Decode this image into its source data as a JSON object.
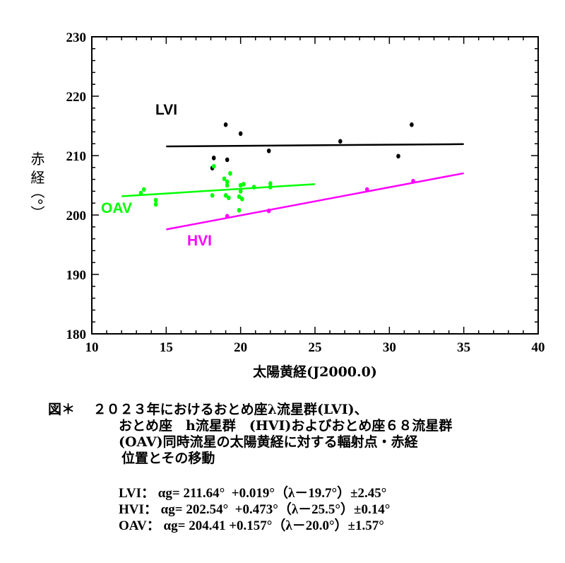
{
  "chart_data": {
    "type": "scatter",
    "xlabel": "太陽黄経(J2000.0)",
    "ylabel": "赤 経（°）",
    "xlim": [
      10,
      40
    ],
    "ylim": [
      180,
      230
    ],
    "xticks": [
      10,
      15,
      20,
      25,
      30,
      35,
      40
    ],
    "yticks": [
      180,
      190,
      200,
      210,
      220,
      230
    ],
    "grid": false,
    "series": [
      {
        "name": "LVI",
        "color": "#000000",
        "points": [
          [
            19.0,
            215.2
          ],
          [
            20.0,
            213.7
          ],
          [
            18.2,
            209.6
          ],
          [
            19.1,
            209.3
          ],
          [
            18.1,
            207.9
          ],
          [
            21.9,
            210.8
          ],
          [
            26.7,
            212.4
          ],
          [
            30.6,
            209.9
          ],
          [
            31.5,
            215.2
          ]
        ],
        "fit": {
          "intercept": 211.64,
          "slope": 0.019,
          "lambda0": 19.7,
          "range": [
            15,
            35
          ]
        }
      },
      {
        "name": "HVI",
        "color": "#ff00ff",
        "points": [
          [
            19.1,
            199.8
          ],
          [
            21.9,
            200.7
          ],
          [
            28.5,
            204.3
          ],
          [
            31.6,
            205.7
          ]
        ],
        "fit": {
          "intercept": 202.54,
          "slope": 0.473,
          "lambda0": 25.5,
          "range": [
            15,
            35
          ]
        }
      },
      {
        "name": "OAV",
        "color": "#00ff00",
        "points": [
          [
            13.5,
            204.3
          ],
          [
            13.3,
            203.7
          ],
          [
            14.3,
            202.5
          ],
          [
            14.3,
            201.8
          ],
          [
            18.2,
            208.2
          ],
          [
            18.1,
            203.3
          ],
          [
            19.3,
            207.0
          ],
          [
            18.9,
            206.1
          ],
          [
            19.1,
            205.6
          ],
          [
            19.1,
            205.0
          ],
          [
            19.0,
            203.3
          ],
          [
            19.2,
            202.9
          ],
          [
            20.0,
            205.0
          ],
          [
            20.2,
            205.2
          ],
          [
            20.0,
            204.0
          ],
          [
            19.9,
            203.1
          ],
          [
            20.1,
            202.7
          ],
          [
            19.9,
            200.8
          ],
          [
            20.9,
            204.7
          ],
          [
            22.0,
            205.3
          ],
          [
            22.0,
            204.7
          ]
        ],
        "fit": {
          "intercept": 204.41,
          "slope": 0.157,
          "lambda0": 20.0,
          "range": [
            12,
            25
          ]
        }
      }
    ]
  },
  "caption": {
    "line1": "図＊　 ２０２３年におけるおとめ座λ流星群(LVI)、",
    "line2": "おとめ座　h流星群　(HVI)およびおとめ座６８流星群",
    "line3": "(OAV)同時流星の太陽黄経に対する輻射点・赤経",
    "line4": "位置とその移動"
  },
  "equations": [
    "LVI： αg= 211.64°  +0.019°（λ－19.7°）±2.45°",
    "HVI： αg= 202.54°  +0.473°（λ－25.5°）±0.14°",
    "OAV： αg= 204.41 +0.157°（λ－20.0°）±1.57°"
  ]
}
